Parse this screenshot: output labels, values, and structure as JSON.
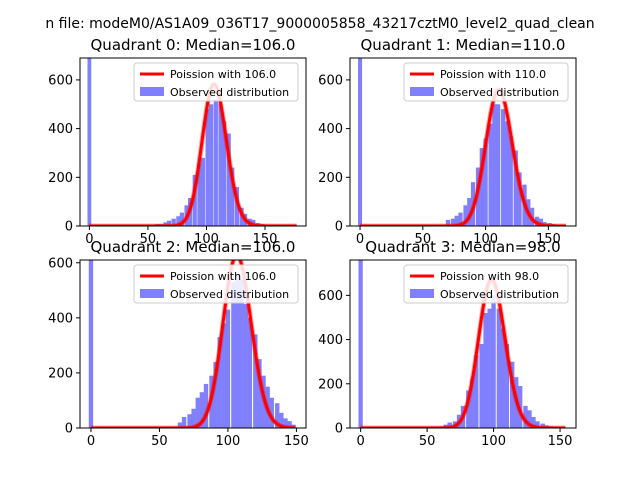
{
  "figure": {
    "title": "n file: modeM0/AS1A09_036T17_9000005858_43217cztM0_level2_quad_clean"
  },
  "colors": {
    "poisson": "#ff0000",
    "observed": "#8080ff"
  },
  "chart_data": [
    {
      "type": "bar",
      "title": "Quadrant 0: Median=106.0",
      "xlim": [
        -8,
        185
      ],
      "ylim": [
        0,
        690
      ],
      "xticks": [
        0,
        50,
        100,
        150
      ],
      "yticks": [
        0,
        200,
        400,
        600
      ],
      "bin_width": 3.6,
      "spike": {
        "x": 0,
        "value": 690
      },
      "legend": [
        "Poission with 106.0",
        "Observed distribution"
      ],
      "poisson_mean": 106.0,
      "histogram": [
        [
          54,
          3
        ],
        [
          58,
          8
        ],
        [
          61,
          8
        ],
        [
          65,
          15
        ],
        [
          68,
          22
        ],
        [
          72,
          30
        ],
        [
          76,
          40
        ],
        [
          79,
          55
        ],
        [
          83,
          85
        ],
        [
          86,
          115
        ],
        [
          90,
          210
        ],
        [
          94,
          260
        ],
        [
          97,
          280
        ],
        [
          101,
          480
        ],
        [
          104,
          500
        ],
        [
          108,
          520
        ],
        [
          112,
          500
        ],
        [
          115,
          430
        ],
        [
          119,
          380
        ],
        [
          122,
          240
        ],
        [
          126,
          160
        ],
        [
          130,
          75
        ],
        [
          133,
          50
        ],
        [
          137,
          30
        ],
        [
          140,
          25
        ],
        [
          144,
          12
        ],
        [
          148,
          8
        ],
        [
          151,
          5
        ],
        [
          155,
          2
        ]
      ]
    },
    {
      "type": "bar",
      "title": "Quadrant 1: Median=110.0",
      "xlim": [
        -8,
        172
      ],
      "ylim": [
        0,
        690
      ],
      "xticks": [
        0,
        50,
        100,
        150
      ],
      "yticks": [
        0,
        200,
        400,
        600
      ],
      "bin_width": 3.4,
      "spike": {
        "x": 0,
        "value": 690
      },
      "legend": [
        "Poission with 110.0",
        "Observed distribution"
      ],
      "poisson_mean": 110.0,
      "histogram": [
        [
          60,
          5
        ],
        [
          70,
          25
        ],
        [
          74,
          30
        ],
        [
          77,
          42
        ],
        [
          80,
          55
        ],
        [
          84,
          85
        ],
        [
          87,
          115
        ],
        [
          90,
          180
        ],
        [
          94,
          240
        ],
        [
          97,
          320
        ],
        [
          100,
          360
        ],
        [
          104,
          420
        ],
        [
          107,
          500
        ],
        [
          110,
          500
        ],
        [
          114,
          480
        ],
        [
          117,
          430
        ],
        [
          120,
          370
        ],
        [
          124,
          310
        ],
        [
          127,
          220
        ],
        [
          131,
          170
        ],
        [
          134,
          110
        ],
        [
          137,
          75
        ],
        [
          141,
          38
        ],
        [
          144,
          30
        ],
        [
          147,
          16
        ],
        [
          151,
          12
        ],
        [
          154,
          8
        ],
        [
          158,
          4
        ]
      ]
    },
    {
      "type": "bar",
      "title": "Quadrant 2: Median=106.0",
      "xlim": [
        -8,
        157
      ],
      "ylim": [
        0,
        610
      ],
      "xticks": [
        0,
        50,
        100,
        150
      ],
      "yticks": [
        0,
        200,
        400,
        600
      ],
      "bin_width": 3.2,
      "spike": {
        "x": 0,
        "value": 610
      },
      "legend": [
        "Poission with 106.0",
        "Observed distribution"
      ],
      "poisson_mean": 106.0,
      "histogram": [
        [
          62,
          5
        ],
        [
          65,
          20
        ],
        [
          68,
          40
        ],
        [
          72,
          50
        ],
        [
          75,
          70
        ],
        [
          78,
          110
        ],
        [
          81,
          130
        ],
        [
          84,
          160
        ],
        [
          88,
          190
        ],
        [
          91,
          240
        ],
        [
          94,
          330
        ],
        [
          97,
          380
        ],
        [
          100,
          430
        ],
        [
          104,
          530
        ],
        [
          107,
          560
        ],
        [
          110,
          540
        ],
        [
          113,
          450
        ],
        [
          116,
          400
        ],
        [
          120,
          340
        ],
        [
          123,
          250
        ],
        [
          126,
          190
        ],
        [
          129,
          150
        ],
        [
          132,
          110
        ],
        [
          136,
          90
        ],
        [
          139,
          55
        ],
        [
          142,
          35
        ],
        [
          145,
          25
        ],
        [
          148,
          12
        ]
      ]
    },
    {
      "type": "bar",
      "title": "Quadrant 3: Median=98.0",
      "xlim": [
        -8,
        162
      ],
      "ylim": [
        0,
        760
      ],
      "xticks": [
        0,
        50,
        100,
        150
      ],
      "yticks": [
        0,
        200,
        400,
        600
      ],
      "bin_width": 3.3,
      "spike": {
        "x": 0,
        "value": 760
      },
      "legend": [
        "Poission with 98.0",
        "Observed distribution"
      ],
      "poisson_mean": 98.0,
      "histogram": [
        [
          58,
          3
        ],
        [
          61,
          8
        ],
        [
          64,
          15
        ],
        [
          67,
          25
        ],
        [
          71,
          30
        ],
        [
          74,
          60
        ],
        [
          77,
          100
        ],
        [
          81,
          170
        ],
        [
          84,
          220
        ],
        [
          87,
          330
        ],
        [
          91,
          380
        ],
        [
          94,
          520
        ],
        [
          97,
          540
        ],
        [
          100,
          600
        ],
        [
          104,
          540
        ],
        [
          107,
          450
        ],
        [
          110,
          380
        ],
        [
          114,
          300
        ],
        [
          117,
          230
        ],
        [
          120,
          190
        ],
        [
          124,
          100
        ],
        [
          127,
          80
        ],
        [
          130,
          50
        ],
        [
          133,
          30
        ],
        [
          137,
          20
        ],
        [
          140,
          12
        ],
        [
          143,
          8
        ],
        [
          147,
          4
        ]
      ]
    }
  ]
}
